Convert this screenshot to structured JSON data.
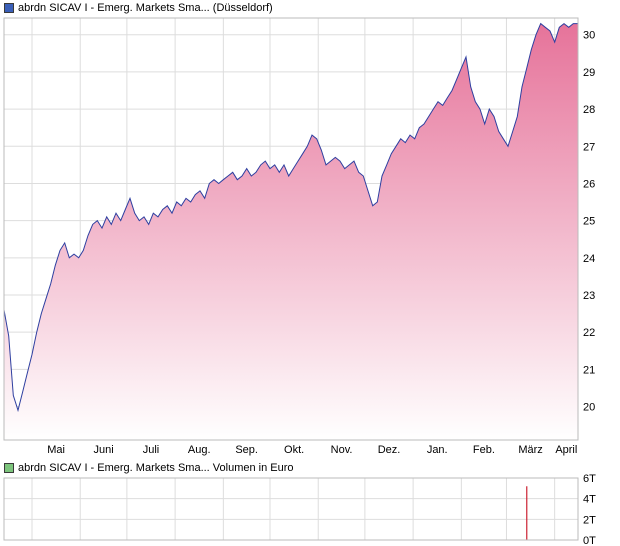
{
  "colors": {
    "price_swatch": "#3a5fb8",
    "volume_swatch": "#7cc47c",
    "price_line": "#2e3fa0",
    "area_top": "#e6739a",
    "area_bottom": "#ffffff",
    "volume_bar": "#cc2233",
    "grid": "#dddddd",
    "frame": "#bbbbbb"
  },
  "legend": {
    "price": "abrdn SICAV I - Emerg. Markets Sma... (Düsseldorf)",
    "volume": "abrdn SICAV I - Emerg. Markets Sma... Volumen in Euro"
  },
  "chart_data": [
    {
      "type": "area",
      "title": "abrdn SICAV I - Emerg. Markets Sma... (Düsseldorf)",
      "x_ticks": [
        "Mai",
        "Juni",
        "Juli",
        "Aug.",
        "Sep.",
        "Okt.",
        "Nov.",
        "Dez.",
        "Jan.",
        "Feb.",
        "März",
        "April"
      ],
      "y_ticks": [
        20,
        21,
        22,
        23,
        24,
        25,
        26,
        27,
        28,
        29,
        30
      ],
      "y_axis_side": "right",
      "grid": true,
      "x_start": "2023-04-13",
      "x_end": "2024-04-16",
      "series": [
        {
          "name": "abrdn SICAV I - Emerg. Markets Sma... (Düsseldorf)",
          "x": [
            "2023-04-13",
            "2023-04-16",
            "2023-04-19",
            "2023-04-22",
            "2023-04-25",
            "2023-04-28",
            "2023-05-01",
            "2023-05-04",
            "2023-05-07",
            "2023-05-10",
            "2023-05-13",
            "2023-05-16",
            "2023-05-19",
            "2023-05-22",
            "2023-05-25",
            "2023-05-28",
            "2023-05-31",
            "2023-06-03",
            "2023-06-06",
            "2023-06-09",
            "2023-06-12",
            "2023-06-15",
            "2023-06-18",
            "2023-06-21",
            "2023-06-24",
            "2023-06-27",
            "2023-06-30",
            "2023-07-03",
            "2023-07-06",
            "2023-07-09",
            "2023-07-12",
            "2023-07-15",
            "2023-07-18",
            "2023-07-21",
            "2023-07-24",
            "2023-07-27",
            "2023-07-30",
            "2023-08-02",
            "2023-08-05",
            "2023-08-08",
            "2023-08-11",
            "2023-08-14",
            "2023-08-17",
            "2023-08-20",
            "2023-08-23",
            "2023-08-26",
            "2023-08-29",
            "2023-09-01",
            "2023-09-04",
            "2023-09-07",
            "2023-09-10",
            "2023-09-13",
            "2023-09-16",
            "2023-09-19",
            "2023-09-22",
            "2023-09-25",
            "2023-09-28",
            "2023-10-01",
            "2023-10-04",
            "2023-10-07",
            "2023-10-10",
            "2023-10-13",
            "2023-10-16",
            "2023-10-19",
            "2023-10-22",
            "2023-10-25",
            "2023-10-28",
            "2023-10-31",
            "2023-11-03",
            "2023-11-06",
            "2023-11-09",
            "2023-11-12",
            "2023-11-15",
            "2023-11-18",
            "2023-11-21",
            "2023-11-24",
            "2023-11-27",
            "2023-11-30",
            "2023-12-03",
            "2023-12-06",
            "2023-12-09",
            "2023-12-12",
            "2023-12-15",
            "2023-12-18",
            "2023-12-21",
            "2023-12-24",
            "2023-12-27",
            "2023-12-30",
            "2024-01-02",
            "2024-01-05",
            "2024-01-08",
            "2024-01-11",
            "2024-01-14",
            "2024-01-17",
            "2024-01-20",
            "2024-01-23",
            "2024-01-26",
            "2024-01-29",
            "2024-02-01",
            "2024-02-04",
            "2024-02-07",
            "2024-02-10",
            "2024-02-13",
            "2024-02-16",
            "2024-02-19",
            "2024-02-22",
            "2024-02-25",
            "2024-02-28",
            "2024-03-02",
            "2024-03-05",
            "2024-03-08",
            "2024-03-11",
            "2024-03-14",
            "2024-03-17",
            "2024-03-20",
            "2024-03-23",
            "2024-03-26",
            "2024-03-29",
            "2024-04-01",
            "2024-04-04",
            "2024-04-07",
            "2024-04-10",
            "2024-04-13",
            "2024-04-16"
          ],
          "values": [
            22.6,
            21.9,
            20.3,
            19.9,
            20.4,
            20.9,
            21.4,
            22.0,
            22.5,
            22.9,
            23.3,
            23.8,
            24.2,
            24.4,
            24.0,
            24.1,
            24.0,
            24.2,
            24.6,
            24.9,
            25.0,
            24.8,
            25.1,
            24.9,
            25.2,
            25.0,
            25.3,
            25.6,
            25.2,
            25.0,
            25.1,
            24.9,
            25.2,
            25.1,
            25.3,
            25.4,
            25.2,
            25.5,
            25.4,
            25.6,
            25.5,
            25.7,
            25.8,
            25.6,
            26.0,
            26.1,
            26.0,
            26.1,
            26.2,
            26.3,
            26.1,
            26.2,
            26.4,
            26.2,
            26.3,
            26.5,
            26.6,
            26.4,
            26.5,
            26.3,
            26.5,
            26.2,
            26.4,
            26.6,
            26.8,
            27.0,
            27.3,
            27.2,
            26.9,
            26.5,
            26.6,
            26.7,
            26.6,
            26.4,
            26.5,
            26.6,
            26.3,
            26.2,
            25.8,
            25.4,
            25.5,
            26.2,
            26.5,
            26.8,
            27.0,
            27.2,
            27.1,
            27.3,
            27.2,
            27.5,
            27.6,
            27.8,
            28.0,
            28.2,
            28.1,
            28.3,
            28.5,
            28.8,
            29.1,
            29.4,
            28.6,
            28.2,
            28.0,
            27.6,
            28.0,
            27.8,
            27.4,
            27.2,
            27.0,
            27.4,
            27.8,
            28.6,
            29.1,
            29.6,
            30.0,
            30.3,
            30.2,
            30.1,
            29.8,
            30.2,
            30.3,
            30.2,
            30.3,
            30.3
          ]
        }
      ]
    },
    {
      "type": "bar",
      "title": "abrdn SICAV I - Emerg. Markets Sma... Volumen in Euro",
      "y_ticks": [
        "0T",
        "2T",
        "4T",
        "6T"
      ],
      "y_range": [
        0,
        6
      ],
      "y_axis_side": "right",
      "grid": true,
      "series": [
        {
          "name": "Volumen in Euro",
          "x": [
            "2024-03-14"
          ],
          "values": [
            5.2
          ]
        }
      ]
    }
  ]
}
